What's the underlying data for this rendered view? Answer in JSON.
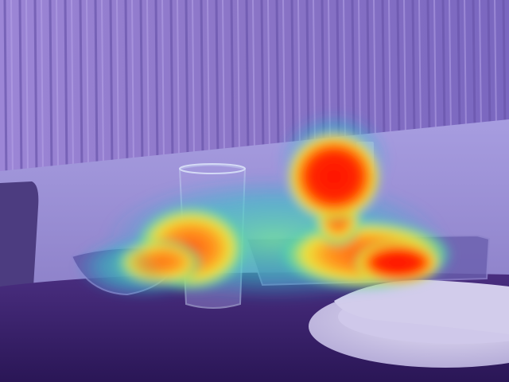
{
  "image": {
    "kind": "photo-with-saliency-heatmap-overlay",
    "palette": {
      "blinds": "#8d79c9",
      "blinds_shadow": "#6f5bb0",
      "wall": "#9a90d4",
      "table": "#3b2470",
      "plate": "#d8d2ee",
      "glass": "#a8b6e6",
      "heat_low": "#2fc6c0",
      "heat_mid": "#f2e23a",
      "heat_high": "#ff1a00"
    },
    "objects": [
      {
        "name": "window-blinds"
      },
      {
        "name": "wall"
      },
      {
        "name": "chair-back"
      },
      {
        "name": "dark-tablecloth"
      },
      {
        "name": "drinking-glass"
      },
      {
        "name": "glass-bowl"
      },
      {
        "name": "glass-tray"
      },
      {
        "name": "white-plate"
      },
      {
        "name": "napkin"
      }
    ],
    "heatmap_overlay": true
  }
}
